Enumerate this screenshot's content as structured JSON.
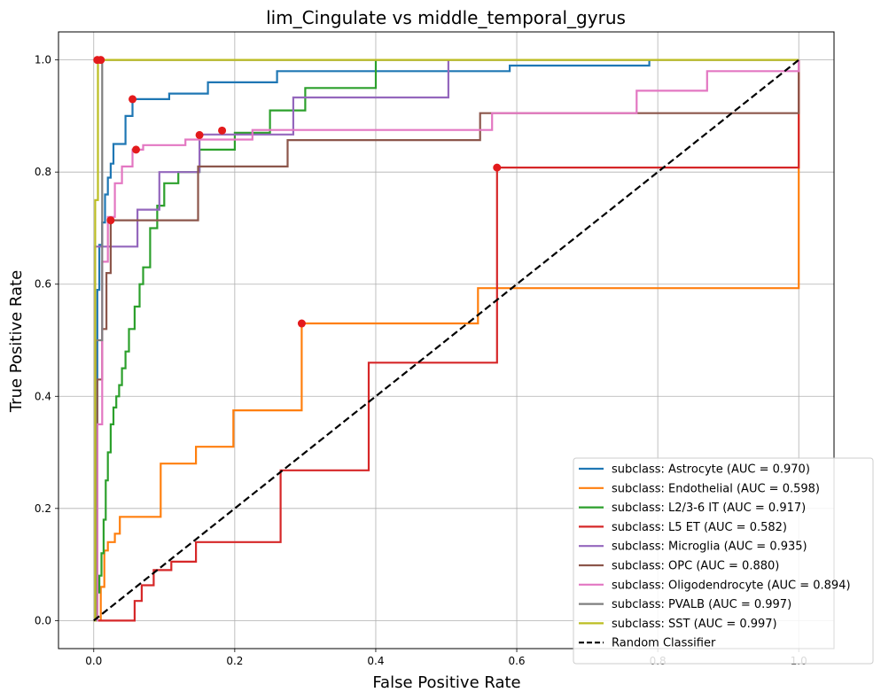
{
  "chart_data": {
    "type": "line",
    "title": "lim_Cingulate vs middle_temporal_gyrus",
    "xlabel": "False Positive Rate",
    "ylabel": "True Positive Rate",
    "xlim": [
      -0.05,
      1.05
    ],
    "ylim": [
      -0.05,
      1.05
    ],
    "xticks": [
      0.0,
      0.2,
      0.4,
      0.6,
      0.8,
      1.0
    ],
    "yticks": [
      0.0,
      0.2,
      0.4,
      0.6,
      0.8,
      1.0
    ],
    "xtick_labels": [
      "0.0",
      "0.2",
      "0.4",
      "0.6",
      "0.8",
      "1.0"
    ],
    "ytick_labels": [
      "0.0",
      "0.2",
      "0.4",
      "0.6",
      "0.8",
      "1.0"
    ],
    "grid": true,
    "legend_position": "lower-right",
    "series": [
      {
        "name": "subclass: Astrocyte (AUC = 0.970)",
        "color": "#1f77b4",
        "x": [
          0,
          0.005,
          0.005,
          0.008,
          0.008,
          0.012,
          0.012,
          0.016,
          0.016,
          0.02,
          0.02,
          0.024,
          0.024,
          0.028,
          0.028,
          0.032,
          0.032,
          0.045,
          0.045,
          0.055,
          0.055,
          0.107,
          0.107,
          0.162,
          0.162,
          0.26,
          0.26,
          0.59,
          0.59,
          0.788,
          0.788
        ],
        "y": [
          0,
          0,
          0.59,
          0.59,
          0.67,
          0.67,
          0.71,
          0.71,
          0.76,
          0.76,
          0.79,
          0.79,
          0.815,
          0.815,
          0.85,
          0.85,
          0.85,
          0.85,
          0.9,
          0.9,
          0.93,
          0.93,
          0.94,
          0.94,
          0.96,
          0.96,
          0.98,
          0.98,
          0.99,
          0.99,
          1.0
        ]
      },
      {
        "name": "subclass: Endothelial (AUC = 0.598)",
        "color": "#ff7f0e",
        "x": [
          0,
          0.01,
          0.01,
          0.015,
          0.015,
          0.02,
          0.02,
          0.03,
          0.03,
          0.037,
          0.037,
          0.095,
          0.095,
          0.145,
          0.145,
          0.198,
          0.198,
          0.295,
          0.295,
          0.545,
          0.545,
          1.0,
          1.0
        ],
        "y": [
          0,
          0,
          0.06,
          0.06,
          0.125,
          0.125,
          0.14,
          0.14,
          0.155,
          0.155,
          0.185,
          0.185,
          0.28,
          0.28,
          0.31,
          0.31,
          0.375,
          0.375,
          0.53,
          0.53,
          0.593,
          0.593,
          1.0
        ]
      },
      {
        "name": "subclass: L2/3-6 IT (AUC = 0.917)",
        "color": "#2ca02c",
        "x": [
          0,
          0.005,
          0.005,
          0.008,
          0.008,
          0.011,
          0.011,
          0.014,
          0.014,
          0.017,
          0.017,
          0.02,
          0.02,
          0.024,
          0.024,
          0.028,
          0.028,
          0.032,
          0.032,
          0.036,
          0.036,
          0.04,
          0.04,
          0.045,
          0.045,
          0.05,
          0.05,
          0.058,
          0.058,
          0.065,
          0.065,
          0.07,
          0.07,
          0.08,
          0.08,
          0.09,
          0.09,
          0.1,
          0.1,
          0.12,
          0.12,
          0.15,
          0.15,
          0.2,
          0.2,
          0.25,
          0.25,
          0.3,
          0.3,
          0.4,
          0.4
        ],
        "y": [
          0,
          0,
          0.05,
          0.05,
          0.08,
          0.08,
          0.12,
          0.12,
          0.18,
          0.18,
          0.25,
          0.25,
          0.3,
          0.3,
          0.35,
          0.35,
          0.38,
          0.38,
          0.4,
          0.4,
          0.42,
          0.42,
          0.45,
          0.45,
          0.48,
          0.48,
          0.52,
          0.52,
          0.56,
          0.56,
          0.6,
          0.6,
          0.63,
          0.63,
          0.7,
          0.7,
          0.74,
          0.74,
          0.78,
          0.78,
          0.8,
          0.8,
          0.84,
          0.84,
          0.87,
          0.87,
          0.91,
          0.91,
          0.95,
          0.95,
          1.0
        ]
      },
      {
        "name": "subclass: L5 ET (AUC = 0.582)",
        "color": "#d62728",
        "x": [
          0,
          0.058,
          0.058,
          0.068,
          0.068,
          0.085,
          0.085,
          0.11,
          0.11,
          0.145,
          0.145,
          0.265,
          0.265,
          0.39,
          0.39,
          0.572,
          0.572,
          1.0,
          1.0
        ],
        "y": [
          0,
          0,
          0.035,
          0.035,
          0.063,
          0.063,
          0.09,
          0.09,
          0.105,
          0.105,
          0.14,
          0.14,
          0.268,
          0.268,
          0.46,
          0.46,
          0.808,
          0.808,
          1.0
        ]
      },
      {
        "name": "subclass: Microglia (AUC = 0.935)",
        "color": "#9467bd",
        "x": [
          0,
          0.002,
          0.002,
          0.062,
          0.062,
          0.093,
          0.093,
          0.15,
          0.15,
          0.283,
          0.283,
          0.503,
          0.503
        ],
        "y": [
          0,
          0,
          0.667,
          0.667,
          0.733,
          0.733,
          0.8,
          0.8,
          0.867,
          0.867,
          0.933,
          0.933,
          1.0
        ]
      },
      {
        "name": "subclass: OPC (AUC = 0.880)",
        "color": "#8c564b",
        "x": [
          0,
          0.005,
          0.005,
          0.012,
          0.012,
          0.018,
          0.018,
          0.024,
          0.024,
          0.148,
          0.148,
          0.275,
          0.275,
          0.548,
          0.548,
          1.0,
          1.0
        ],
        "y": [
          0,
          0,
          0.43,
          0.43,
          0.52,
          0.52,
          0.62,
          0.62,
          0.714,
          0.714,
          0.81,
          0.81,
          0.857,
          0.857,
          0.905,
          0.905,
          1.0
        ]
      },
      {
        "name": "subclass: Oligodendrocyte (AUC = 0.894)",
        "color": "#e377c2",
        "x": [
          0,
          0.005,
          0.005,
          0.012,
          0.012,
          0.02,
          0.02,
          0.03,
          0.03,
          0.04,
          0.04,
          0.055,
          0.055,
          0.07,
          0.07,
          0.13,
          0.13,
          0.225,
          0.225,
          0.565,
          0.565,
          0.77,
          0.77,
          0.87,
          0.87,
          1.0,
          1.0
        ],
        "y": [
          0,
          0,
          0.35,
          0.35,
          0.64,
          0.64,
          0.72,
          0.72,
          0.78,
          0.78,
          0.81,
          0.81,
          0.84,
          0.84,
          0.848,
          0.848,
          0.858,
          0.858,
          0.875,
          0.875,
          0.905,
          0.905,
          0.945,
          0.945,
          0.98,
          0.98,
          1.0
        ]
      },
      {
        "name": "subclass: PVALB (AUC = 0.997)",
        "color": "#7f7f7f",
        "x": [
          0,
          0.003,
          0.003,
          0.012,
          0.012,
          1.0
        ],
        "y": [
          0,
          0,
          0.5,
          0.5,
          1.0,
          1.0
        ]
      },
      {
        "name": "subclass: SST (AUC = 0.997)",
        "color": "#bcbd22",
        "x": [
          0,
          0.002,
          0.002,
          0.006,
          0.006,
          1.0
        ],
        "y": [
          0,
          0,
          0.75,
          0.75,
          1.0,
          1.0
        ]
      }
    ],
    "reference_line": {
      "name": "Random Classifier",
      "color": "#000000",
      "style": "dashed",
      "x": [
        0,
        1
      ],
      "y": [
        0,
        1
      ]
    },
    "optimal_points": {
      "color": "#e31a1c",
      "points": [
        {
          "x": 0.055,
          "y": 0.93
        },
        {
          "x": 0.295,
          "y": 0.53
        },
        {
          "x": 0.182,
          "y": 0.874
        },
        {
          "x": 0.572,
          "y": 0.808
        },
        {
          "x": 0.15,
          "y": 0.866
        },
        {
          "x": 0.024,
          "y": 0.714
        },
        {
          "x": 0.06,
          "y": 0.84
        },
        {
          "x": 0.005,
          "y": 1.0
        },
        {
          "x": 0.01,
          "y": 1.0
        }
      ]
    }
  }
}
